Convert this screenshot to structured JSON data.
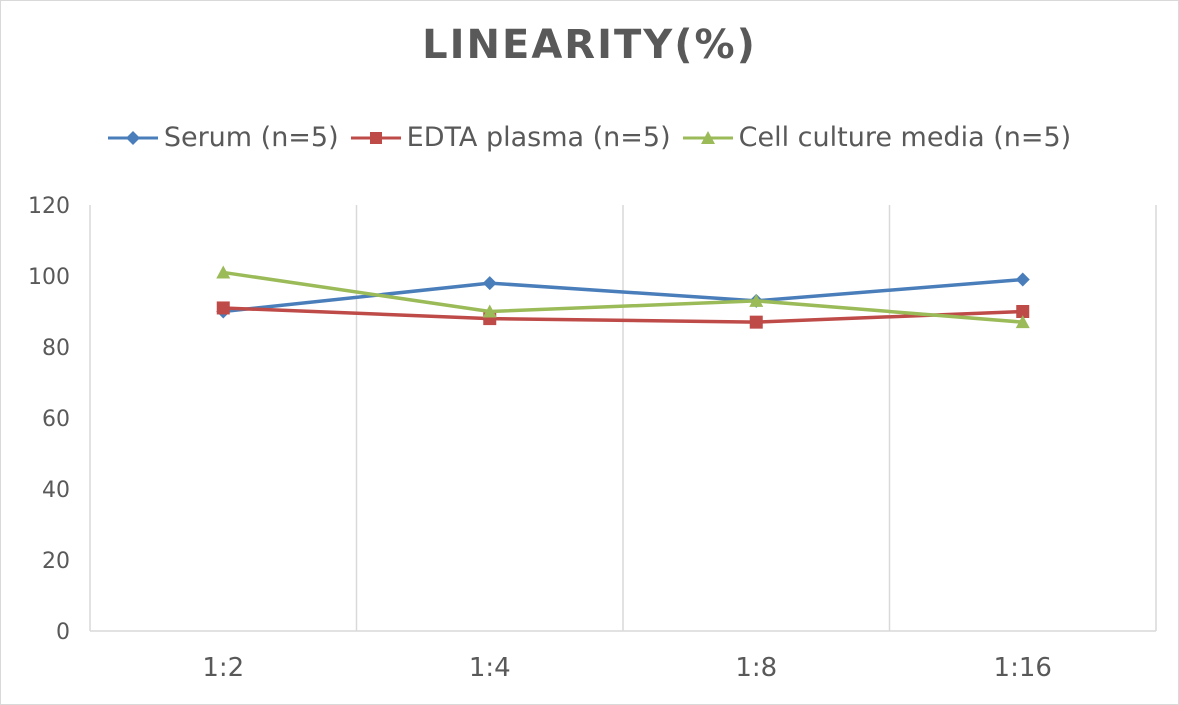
{
  "chart_data": {
    "type": "line",
    "title": "LINEARITY(%)",
    "categories": [
      "1:2",
      "1:4",
      "1:8",
      "1:16"
    ],
    "series": [
      {
        "name": "Serum (n=5)",
        "values": [
          90,
          98,
          93,
          99
        ],
        "color": "#4a7ebb",
        "marker": "diamond"
      },
      {
        "name": "EDTA plasma (n=5)",
        "values": [
          91,
          88,
          87,
          90
        ],
        "color": "#be4b48",
        "marker": "square"
      },
      {
        "name": "Cell culture media (n=5)",
        "values": [
          101,
          90,
          93,
          87
        ],
        "color": "#9bbb59",
        "marker": "triangle"
      }
    ],
    "ylim": [
      0,
      120
    ],
    "yticks": [
      "0",
      "20",
      "40",
      "60",
      "80",
      "100",
      "120"
    ],
    "grid": "vertical",
    "legend": "top"
  }
}
